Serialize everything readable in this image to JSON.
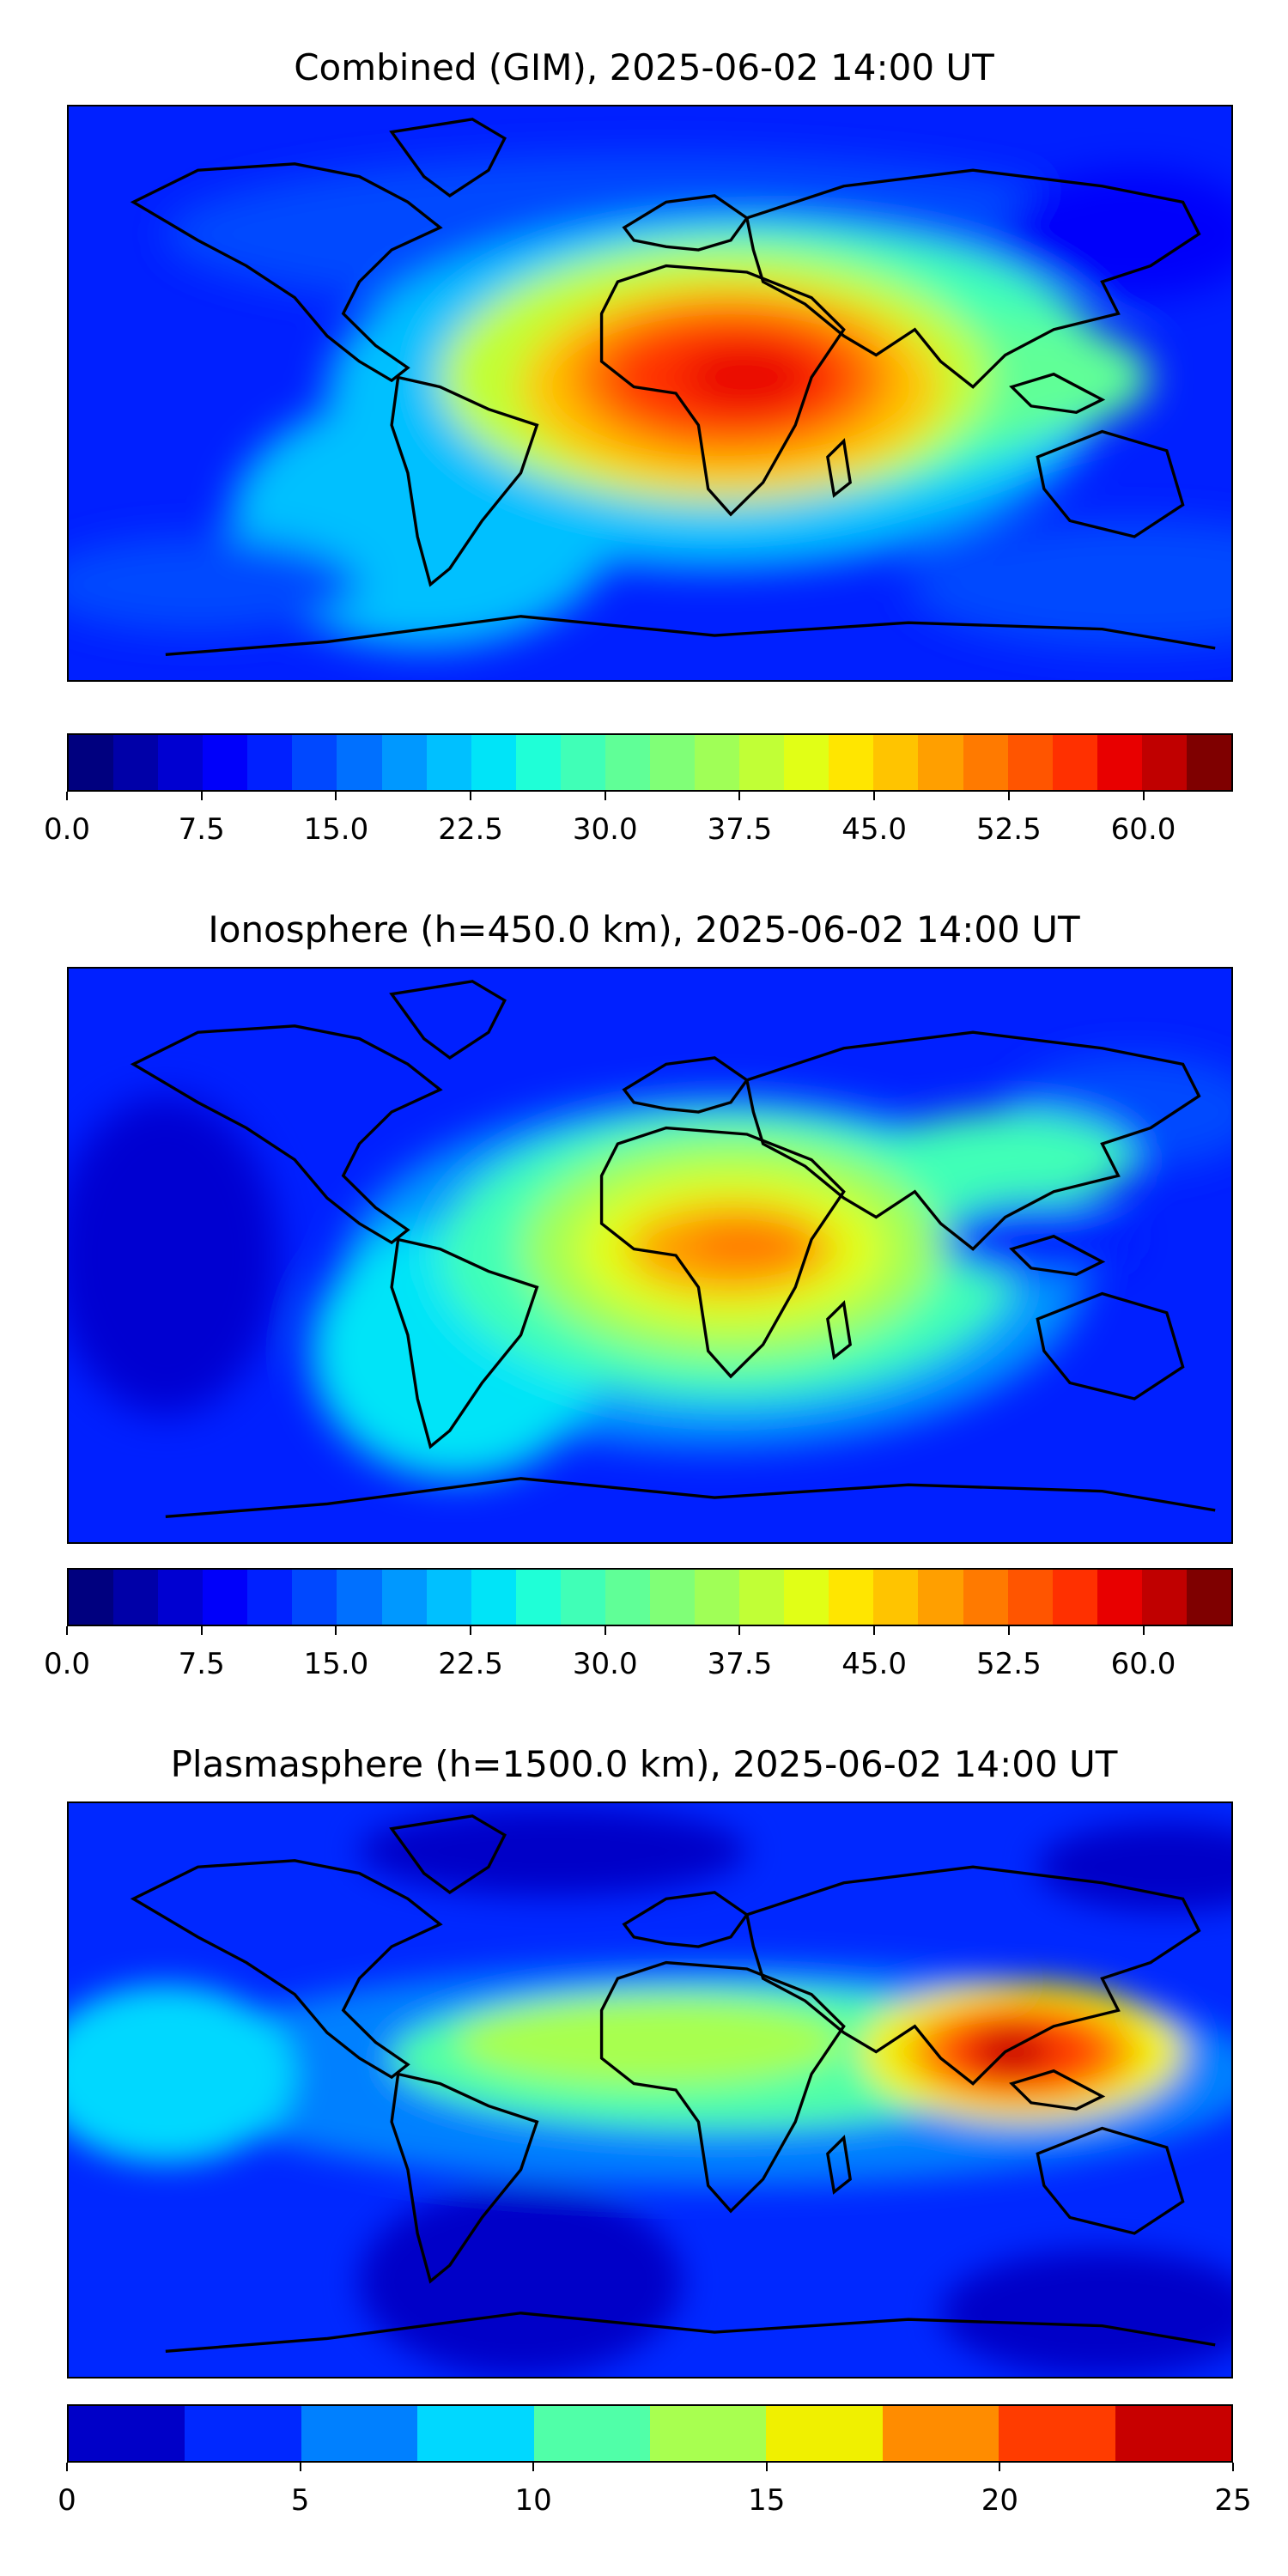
{
  "panels": [
    {
      "title": "Combined (GIM), 2025-06-02 14:00 UT",
      "colorbar": {
        "min": 0,
        "max": 65,
        "step": 2.5,
        "ticks": [
          "0.0",
          "7.5",
          "15.0",
          "22.5",
          "30.0",
          "37.5",
          "45.0",
          "52.5",
          "60.0"
        ],
        "colors": [
          "#00007f",
          "#0000a8",
          "#0000d1",
          "#0000fa",
          "#0020ff",
          "#0048ff",
          "#0070ff",
          "#0098ff",
          "#00c0ff",
          "#00e4f8",
          "#1fffd7",
          "#40ffb7",
          "#60ff97",
          "#80ff77",
          "#a0ff57",
          "#c1ff36",
          "#e1ff16",
          "#ffe600",
          "#ffc400",
          "#ff9f00",
          "#ff7a00",
          "#ff5500",
          "#ff3000",
          "#e80000",
          "#c00000",
          "#7f0000"
        ]
      }
    },
    {
      "title": "Ionosphere  (h=450.0 km), 2025-06-02 14:00 UT",
      "colorbar": {
        "min": 0,
        "max": 65,
        "step": 2.5,
        "ticks": [
          "0.0",
          "7.5",
          "15.0",
          "22.5",
          "30.0",
          "37.5",
          "45.0",
          "52.5",
          "60.0"
        ],
        "colors": [
          "#00007f",
          "#0000a8",
          "#0000d1",
          "#0000fa",
          "#0020ff",
          "#0048ff",
          "#0070ff",
          "#0098ff",
          "#00c0ff",
          "#00e4f8",
          "#1fffd7",
          "#40ffb7",
          "#60ff97",
          "#80ff77",
          "#a0ff57",
          "#c1ff36",
          "#e1ff16",
          "#ffe600",
          "#ffc400",
          "#ff9f00",
          "#ff7a00",
          "#ff5500",
          "#ff3000",
          "#e80000",
          "#c00000",
          "#7f0000"
        ]
      }
    },
    {
      "title": "Plasmasphere (h=1500.0 km), 2025-06-02 14:00 UT",
      "colorbar": {
        "min": 0,
        "max": 25,
        "step": 2.5,
        "ticks": [
          "0",
          "5",
          "10",
          "15",
          "20",
          "25"
        ],
        "colors": [
          "#0000c8",
          "#0028ff",
          "#0080ff",
          "#00d8ff",
          "#50ffa8",
          "#a8ff50",
          "#f0f000",
          "#ff8c00",
          "#ff3c00",
          "#c80000"
        ]
      }
    }
  ]
}
